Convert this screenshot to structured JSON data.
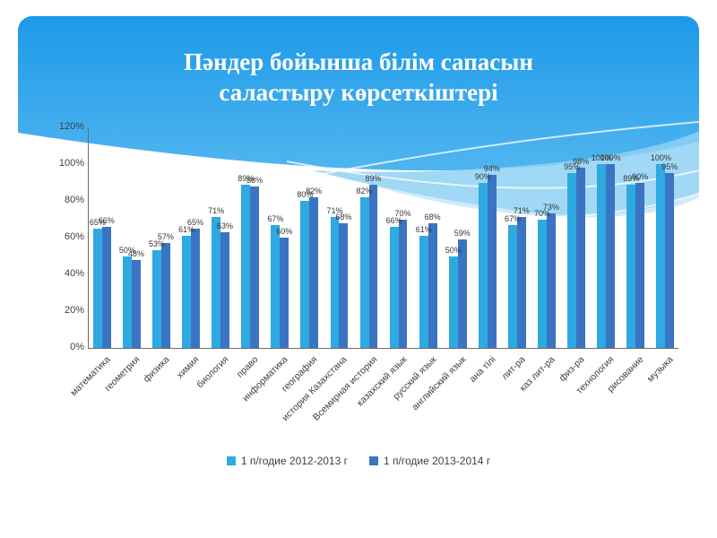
{
  "slide": {
    "title_line1": "Пәндер бойынша білім сапасын",
    "title_line2": "саластыру көрсеткіштері"
  },
  "colors": {
    "series_2012_2013": "#2EA9E1",
    "series_2013_2014": "#3B74C2",
    "header_gradient_top": "#1D99E9",
    "header_gradient_bottom": "#4FB5EF",
    "wave_light": "#8FD1F5",
    "wave_lighter": "#C2E6FA",
    "axis_text": "#3F3F3F"
  },
  "chart_data": {
    "type": "bar",
    "title": "",
    "xlabel": "",
    "ylabel": "",
    "ylim": [
      0,
      120
    ],
    "ytick_step": 20,
    "ytick_labels": [
      "0%",
      "20%",
      "40%",
      "60%",
      "80%",
      "100%",
      "120%"
    ],
    "grid": false,
    "data_labels": true,
    "legend_position": "bottom",
    "categories": [
      "математика",
      "геометрия",
      "физика",
      "химия",
      "биология",
      "право",
      "информатика",
      "география",
      "история Казахстана",
      "Всемирная история",
      "казахский язык",
      "русский язык",
      "английский язык",
      "ана тілі",
      "лит-ра",
      "каз лит-ра",
      "физ-ра",
      "технология",
      "рисование",
      "музыка"
    ],
    "series": [
      {
        "name": "1 п/годие 2012-2013 г",
        "color": "#2EA9E1",
        "values": [
          65,
          50,
          53,
          61,
          71,
          89,
          67,
          80,
          71,
          82,
          66,
          61,
          50,
          90,
          67,
          70,
          95,
          100,
          89,
          100
        ]
      },
      {
        "name": "1 п/годие 2013-2014 г",
        "color": "#3B74C2",
        "values": [
          66,
          48,
          57,
          65,
          63,
          88,
          60,
          82,
          68,
          89,
          70,
          68,
          59,
          94,
          71,
          73,
          98,
          100,
          90,
          95
        ]
      }
    ]
  }
}
